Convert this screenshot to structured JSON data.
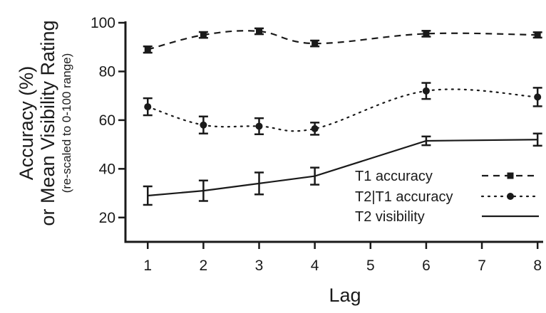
{
  "chart_data": {
    "type": "line",
    "title": "",
    "xlabel": "Lag",
    "ylabel": "Accuracy (%)",
    "ylabel_line2": "or Mean Visibility Rating",
    "ylabel_sub": "(re-scaled to 0-100 range)",
    "x": [
      1,
      2,
      3,
      4,
      6,
      8
    ],
    "xticks": [
      "1",
      "2",
      "3",
      "4",
      "5",
      "6",
      "7",
      "8"
    ],
    "yticks": [
      "20",
      "40",
      "60",
      "80",
      "100"
    ],
    "xlim": [
      0.6,
      8.1
    ],
    "ylim": [
      10,
      100
    ],
    "grid": false,
    "legend_position": "bottom-right",
    "series": [
      {
        "name": "T1 accuracy",
        "values": [
          89,
          95,
          96.5,
          91.5,
          95.5,
          95
        ],
        "errors": [
          1.3,
          1.2,
          1.2,
          1.2,
          1.2,
          1.1
        ],
        "line_style": "dashed",
        "marker": "square",
        "color": "#1a1a1a"
      },
      {
        "name": "T2|T1 accuracy",
        "values": [
          65.5,
          58,
          57.5,
          56.5,
          72,
          69.5
        ],
        "errors": [
          3.5,
          3.5,
          3.3,
          2.5,
          3.3,
          3.8
        ],
        "line_style": "dotted",
        "marker": "circle",
        "color": "#1a1a1a"
      },
      {
        "name": "T2 visibility",
        "values": [
          29,
          31,
          34,
          37,
          51.5,
          52
        ],
        "errors": [
          3.8,
          4.2,
          4.5,
          3.5,
          1.8,
          2.5
        ],
        "line_style": "solid",
        "marker": "none",
        "color": "#1a1a1a"
      }
    ]
  }
}
